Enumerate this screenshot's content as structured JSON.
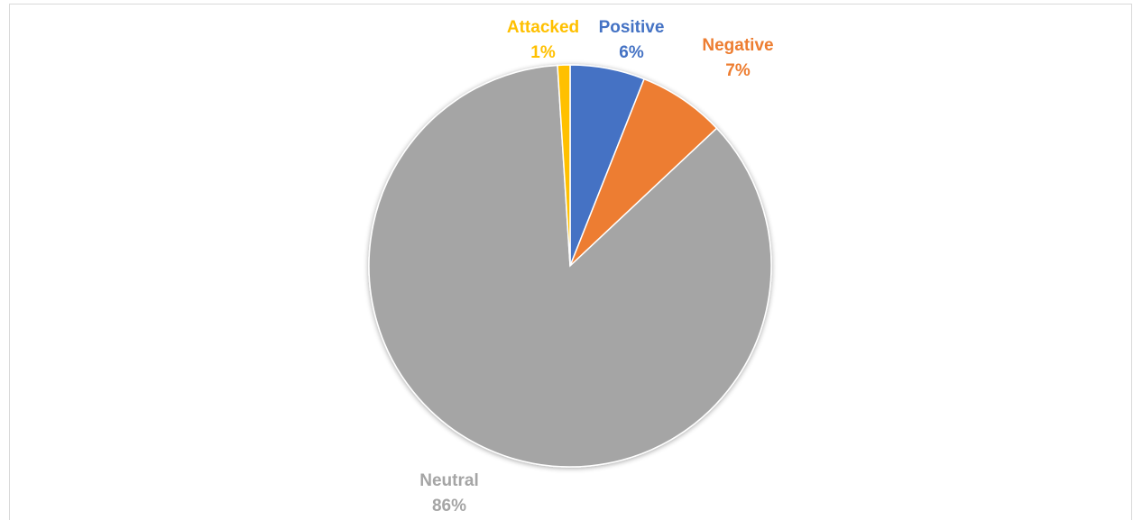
{
  "caption": "",
  "chart_data": {
    "type": "pie",
    "title": "",
    "slices": [
      {
        "name": "Positive",
        "percent_label": "6%",
        "value": 6,
        "color": "#4472c4"
      },
      {
        "name": "Negative",
        "percent_label": "7%",
        "value": 7,
        "color": "#ed7d31"
      },
      {
        "name": "Neutral",
        "percent_label": "86%",
        "value": 86,
        "color": "#a5a5a5"
      },
      {
        "name": "Attacked",
        "percent_label": "1%",
        "value": 1,
        "color": "#ffc000"
      }
    ],
    "start_angle_deg": 0,
    "direction": "clockwise",
    "legend": "none"
  }
}
